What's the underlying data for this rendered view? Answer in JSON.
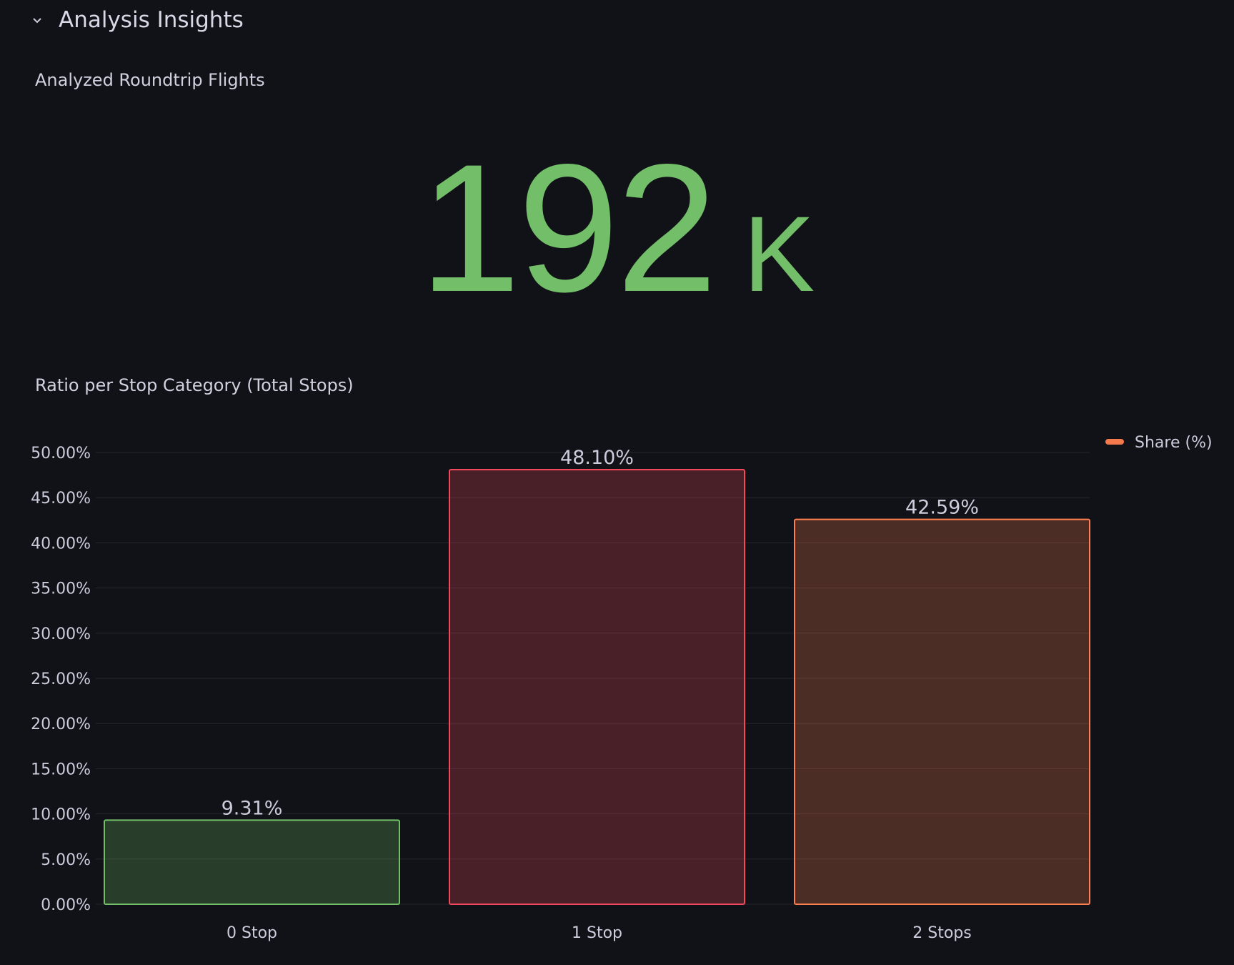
{
  "row": {
    "title": "Analysis Insights",
    "collapse_icon": "chevron-down-icon"
  },
  "stat_panel": {
    "title": "Analyzed Roundtrip Flights",
    "value": "192",
    "unit": "K",
    "color": "#73bf69"
  },
  "chart_data": {
    "type": "bar",
    "title": "Ratio per Stop Category (Total Stops)",
    "categories": [
      "0 Stop",
      "1 Stop",
      "2 Stops"
    ],
    "series": [
      {
        "name": "Share (%)",
        "values": [
          9.31,
          48.1,
          42.59
        ]
      }
    ],
    "data_labels": [
      "9.31%",
      "48.10%",
      "42.59%"
    ],
    "bar_colors": [
      "#73bf69",
      "#f2495c",
      "#ff7f50"
    ],
    "legend_color": "#f47a4d",
    "ylim": [
      0,
      50
    ],
    "yticks": [
      "0.00%",
      "5.00%",
      "10.00%",
      "15.00%",
      "20.00%",
      "25.00%",
      "30.00%",
      "35.00%",
      "40.00%",
      "45.00%",
      "50.00%"
    ],
    "grid": true,
    "legend_placement": "top-right"
  }
}
